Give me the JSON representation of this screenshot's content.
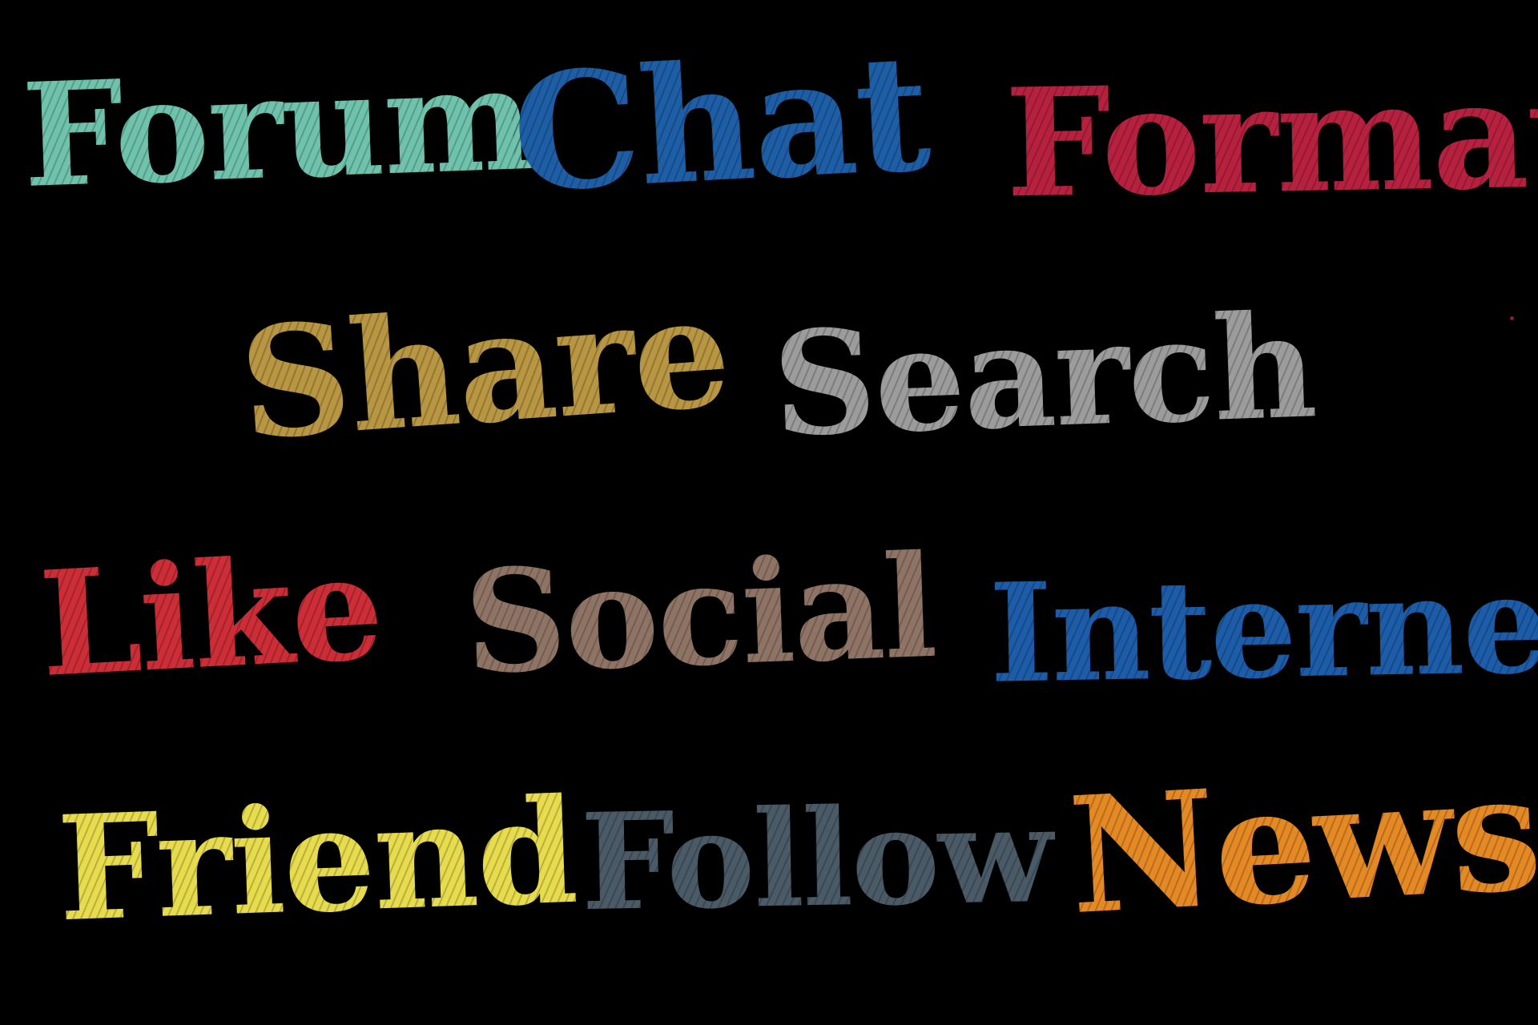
{
  "words": {
    "forum": {
      "text": "Forum",
      "color": "#6fc3ad"
    },
    "chat": {
      "text": "Chat",
      "color": "#1d5ea6"
    },
    "format": {
      "text": "Format",
      "color": "#b7213f"
    },
    "share": {
      "text": "Share",
      "color": "#b89642"
    },
    "search": {
      "text": "Search",
      "color": "#9c9c9c"
    },
    "like": {
      "text": "Like",
      "color": "#cc2d36"
    },
    "social": {
      "text": "Social",
      "color": "#8f7465"
    },
    "internet": {
      "text": "Internet",
      "color": "#1c5ca8"
    },
    "friend": {
      "text": "Friend",
      "color": "#e7dc4d"
    },
    "follow": {
      "text": "Follow",
      "color": "#4a5a66"
    },
    "news": {
      "text": "News",
      "color": "#e58925"
    }
  },
  "background_color": "#000000"
}
